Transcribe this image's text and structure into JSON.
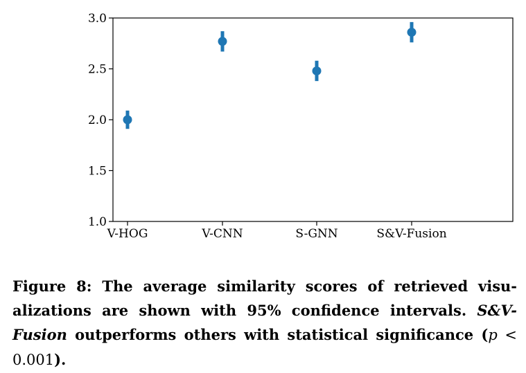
{
  "chart_data": {
    "type": "scatter",
    "subtype": "point-with-error-bars",
    "categories": [
      "V-HOG",
      "V-CNN",
      "S-GNN",
      "S&V-Fusion"
    ],
    "values": [
      2.0,
      2.77,
      2.48,
      2.86
    ],
    "ci_low": [
      1.91,
      2.67,
      2.38,
      2.76
    ],
    "ci_high": [
      2.09,
      2.87,
      2.58,
      2.96
    ],
    "ylim": [
      1.0,
      3.0
    ],
    "yticks": [
      "1.0",
      "1.5",
      "2.0",
      "2.5",
      "3.0"
    ],
    "ytick_values": [
      1.0,
      1.5,
      2.0,
      2.5,
      3.0
    ],
    "color": "#1f77b4",
    "xlabel": "",
    "ylabel": ""
  },
  "caption": {
    "prefix": "Figure 8: The average similarity scores of retrieved visu-alizations are shown with 95% confidence intervals. ",
    "method": "S&V-Fusion",
    "middle": " outperforms others with statistical significance (",
    "pvar": "p",
    "lt": " < ",
    "pval": "0.001",
    "suffix": ")."
  }
}
